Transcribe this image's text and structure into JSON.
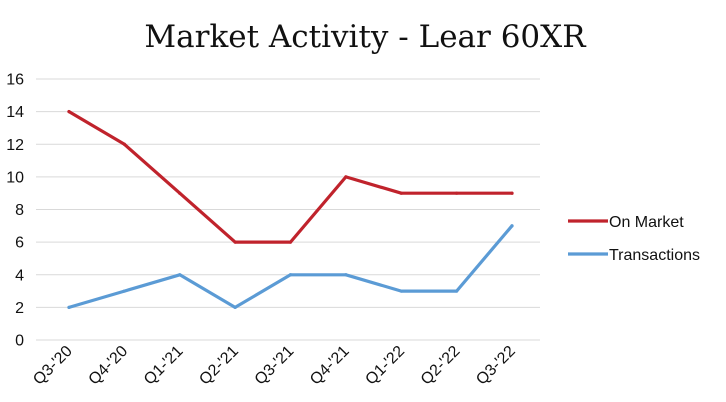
{
  "chart_data": {
    "type": "line",
    "title": "Market Activity - Lear 60XR",
    "xlabel": "",
    "ylabel": "",
    "categories": [
      "Q3-'20",
      "Q4-'20",
      "Q1-'21",
      "Q2-'21",
      "Q3-'21",
      "Q4-'21",
      "Q1-'22",
      "Q2-'22",
      "Q3-'22"
    ],
    "ylim": [
      0,
      16
    ],
    "yticks": [
      0,
      2,
      4,
      6,
      8,
      10,
      12,
      14,
      16
    ],
    "grid": true,
    "legend_position": "right",
    "series": [
      {
        "name": "On Market",
        "color": "#c0232c",
        "values": [
          14,
          12,
          9,
          6,
          6,
          10,
          9,
          9,
          9
        ]
      },
      {
        "name": "Transactions",
        "color": "#5b9bd5",
        "values": [
          2,
          3,
          4,
          2,
          4,
          4,
          3,
          3,
          7
        ]
      }
    ]
  }
}
